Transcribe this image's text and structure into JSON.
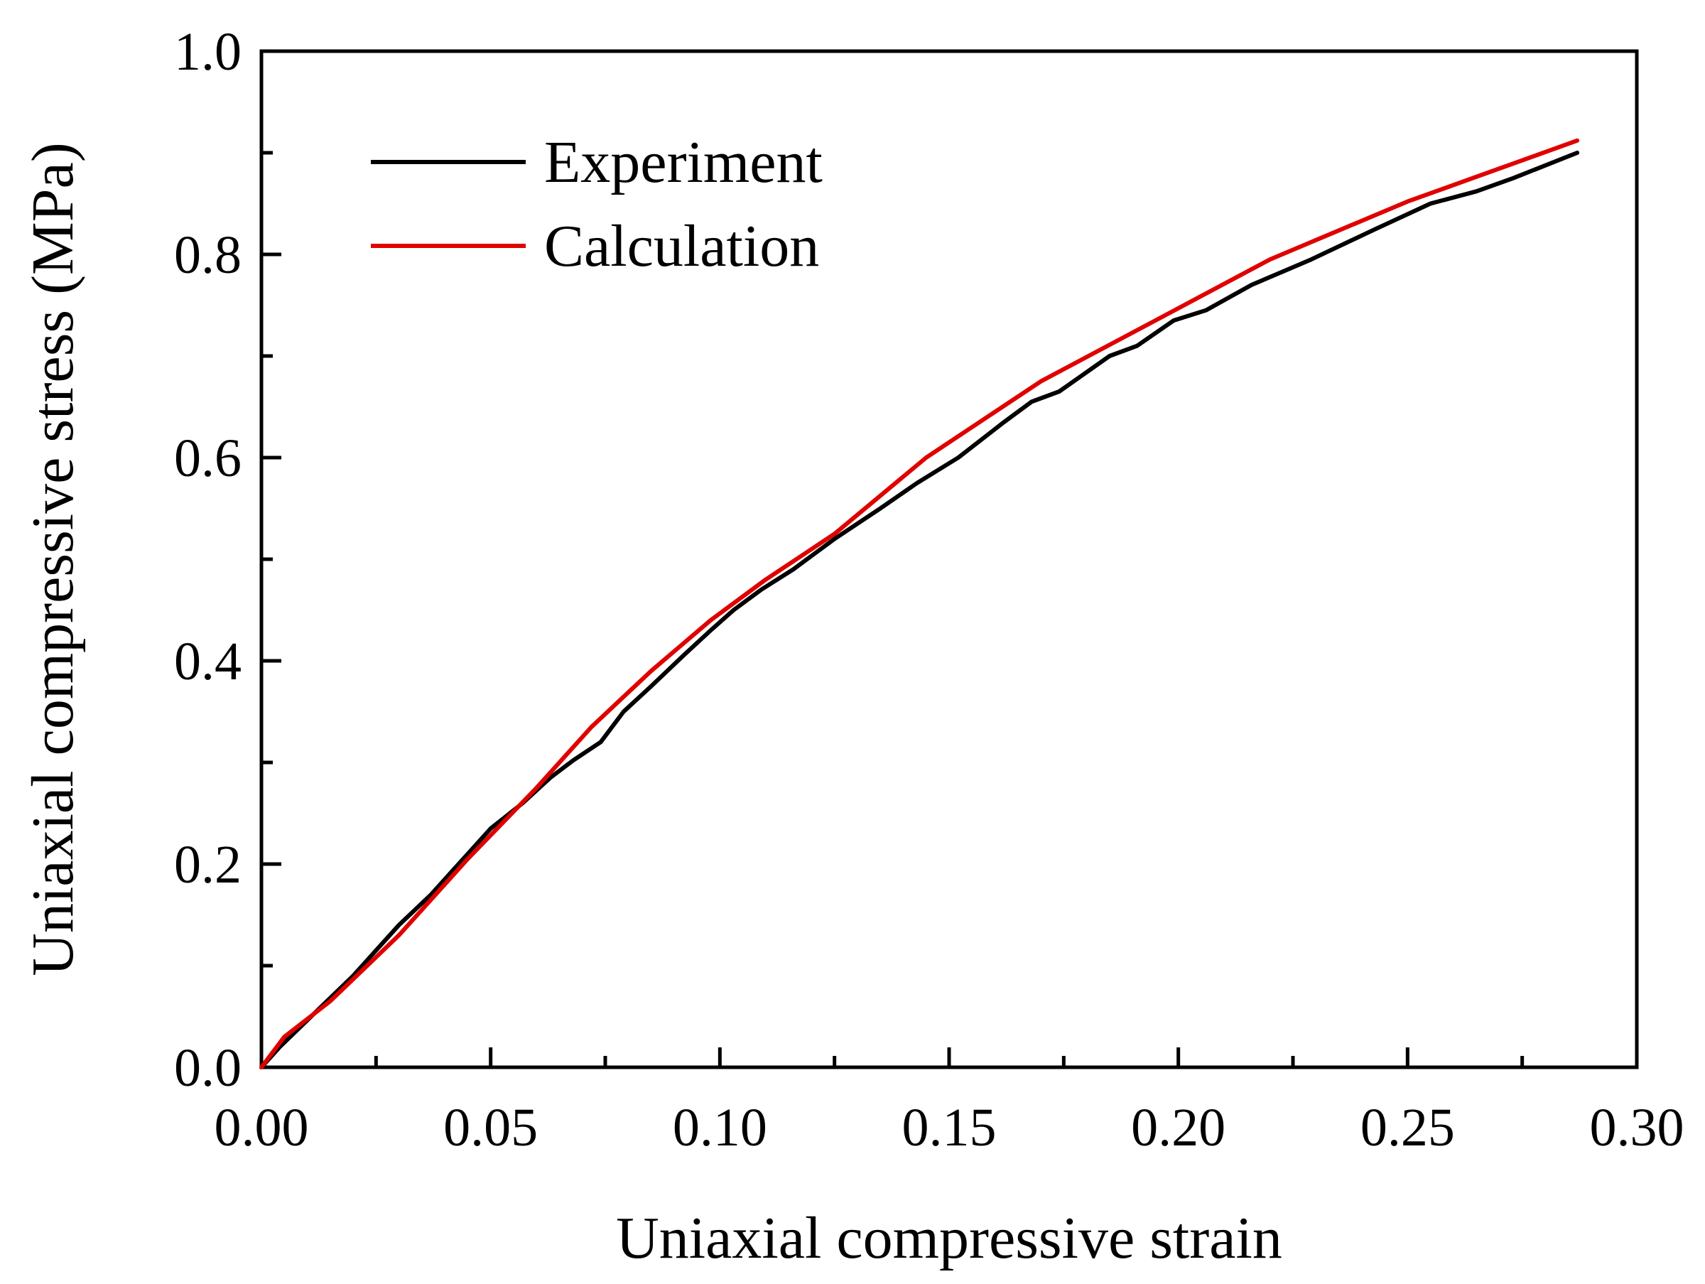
{
  "chart_data": {
    "type": "line",
    "title": "",
    "xlabel": "Uniaxial compressive strain",
    "ylabel": "Uniaxial compressive stress (MPa)",
    "xlim": [
      0,
      0.3
    ],
    "ylim": [
      0,
      1.0
    ],
    "grid": false,
    "legend_position": "top-left",
    "x_ticks": [
      {
        "value": 0.0,
        "label": "0.00"
      },
      {
        "value": 0.05,
        "label": "0.05"
      },
      {
        "value": 0.1,
        "label": "0.10"
      },
      {
        "value": 0.15,
        "label": "0.15"
      },
      {
        "value": 0.2,
        "label": "0.20"
      },
      {
        "value": 0.25,
        "label": "0.25"
      },
      {
        "value": 0.3,
        "label": "0.30"
      }
    ],
    "y_ticks": [
      {
        "value": 0.0,
        "label": "0.0"
      },
      {
        "value": 0.2,
        "label": "0.2"
      },
      {
        "value": 0.4,
        "label": "0.4"
      },
      {
        "value": 0.6,
        "label": "0.6"
      },
      {
        "value": 0.8,
        "label": "0.8"
      },
      {
        "value": 1.0,
        "label": "1.0"
      }
    ],
    "series": [
      {
        "name": "Experiment",
        "color": "#000000",
        "x": [
          0,
          0.004,
          0.012,
          0.02,
          0.025,
          0.03,
          0.037,
          0.045,
          0.05,
          0.057,
          0.063,
          0.068,
          0.074,
          0.079,
          0.085,
          0.092,
          0.098,
          0.103,
          0.109,
          0.116,
          0.125,
          0.135,
          0.143,
          0.152,
          0.162,
          0.168,
          0.174,
          0.185,
          0.191,
          0.199,
          0.206,
          0.216,
          0.229,
          0.243,
          0.255,
          0.265,
          0.273,
          0.287
        ],
        "values": [
          0,
          0.02,
          0.055,
          0.09,
          0.115,
          0.14,
          0.17,
          0.21,
          0.235,
          0.26,
          0.285,
          0.302,
          0.32,
          0.35,
          0.375,
          0.405,
          0.43,
          0.45,
          0.47,
          0.49,
          0.52,
          0.55,
          0.575,
          0.6,
          0.635,
          0.655,
          0.665,
          0.7,
          0.71,
          0.735,
          0.745,
          0.77,
          0.795,
          0.825,
          0.85,
          0.862,
          0.875,
          0.9
        ]
      },
      {
        "name": "Calculation",
        "color": "#e00000",
        "x": [
          0,
          0.005,
          0.015,
          0.03,
          0.045,
          0.06,
          0.072,
          0.085,
          0.098,
          0.11,
          0.125,
          0.145,
          0.17,
          0.195,
          0.22,
          0.25,
          0.287
        ],
        "values": [
          0,
          0.03,
          0.065,
          0.13,
          0.205,
          0.275,
          0.335,
          0.39,
          0.44,
          0.48,
          0.525,
          0.6,
          0.675,
          0.735,
          0.795,
          0.852,
          0.912
        ]
      }
    ]
  }
}
